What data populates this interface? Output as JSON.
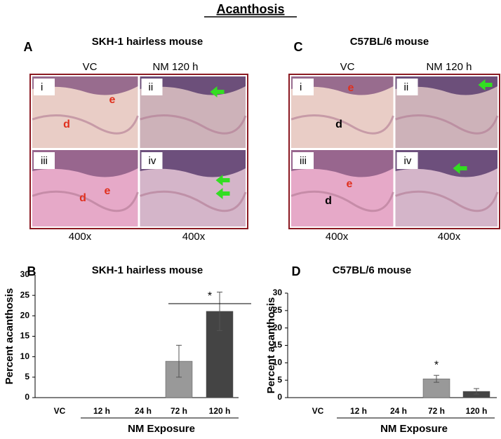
{
  "title": "Acanthosis",
  "panels": [
    {
      "letter": "A",
      "title": "SKH-1 hairless mouse",
      "column_labels": [
        "VC",
        "NM 120 h"
      ],
      "tiles": [
        {
          "label": "i",
          "marks": [
            "e",
            "d"
          ]
        },
        {
          "label": "ii",
          "marks": []
        },
        {
          "label": "iii",
          "marks": [
            "e",
            "d"
          ]
        },
        {
          "label": "iv",
          "marks": []
        }
      ],
      "magnifications": [
        "400x",
        "400x"
      ]
    },
    {
      "letter": "C",
      "title": "C57BL/6 mouse",
      "column_labels": [
        "VC",
        "NM 120 h"
      ],
      "tiles": [
        {
          "label": "i",
          "marks": [
            "e",
            "d"
          ]
        },
        {
          "label": "ii",
          "marks": []
        },
        {
          "label": "iii",
          "marks": [
            "e",
            "d"
          ]
        },
        {
          "label": "iv",
          "marks": []
        }
      ],
      "magnifications": [
        "400x",
        "400x"
      ]
    }
  ],
  "chart_data": [
    {
      "type": "bar",
      "letter": "B",
      "title": "SKH-1 hairless mouse",
      "ylabel": "Percent acanthosis",
      "xlabel": "NM Exposure",
      "categories": [
        "VC",
        "12 h",
        "24 h",
        "72 h",
        "120 h"
      ],
      "values": [
        0,
        0,
        0,
        8.9,
        21.1
      ],
      "errors": [
        null,
        null,
        null,
        3.9,
        4.7
      ],
      "colors": [
        "#999999",
        "#999999",
        "#999999",
        "#999999",
        "#444444"
      ],
      "ylim": [
        0,
        30
      ],
      "yticks": [
        0,
        5,
        10,
        15,
        20,
        25,
        30
      ],
      "annotation": "*"
    },
    {
      "type": "bar",
      "letter": "D",
      "title": "C57BL/6 mouse",
      "ylabel": "Percent acanthosis",
      "xlabel": "NM Exposure",
      "categories": [
        "VC",
        "12 h",
        "24 h",
        "72 h",
        "120 h"
      ],
      "values": [
        0,
        0,
        0,
        5.4,
        1.8
      ],
      "errors": [
        null,
        null,
        null,
        1.0,
        0.8
      ],
      "colors": [
        "#999999",
        "#999999",
        "#999999",
        "#999999",
        "#444444"
      ],
      "ylim": [
        0,
        30
      ],
      "yticks": [
        0,
        5,
        10,
        15,
        20,
        25,
        30
      ],
      "annotation": "*"
    }
  ]
}
